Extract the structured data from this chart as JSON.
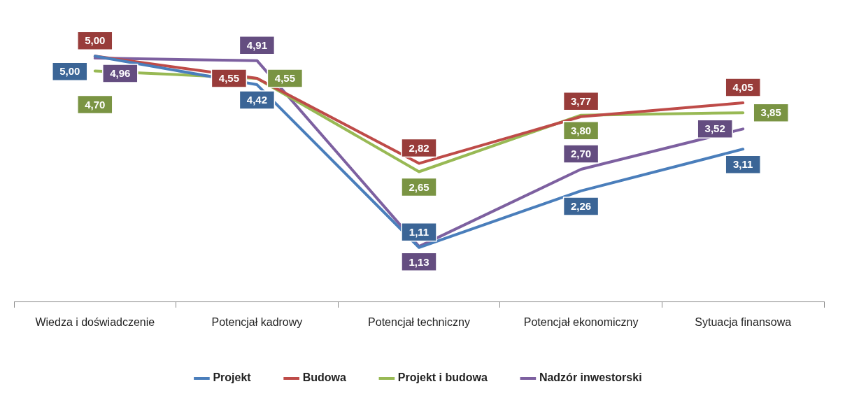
{
  "chart_data": {
    "type": "line",
    "categories": [
      "Wiedza i doświadczenie",
      "Potencjał kadrowy",
      "Potencjał techniczny",
      "Potencjał ekonomiczny",
      "Sytuacja finansowa"
    ],
    "series": [
      {
        "name": "Projekt",
        "color": "#4a7ebb",
        "values": [
          5.0,
          4.42,
          1.11,
          2.26,
          3.11
        ],
        "value_labels": [
          "5,00",
          "4,42",
          "1,11",
          "2,26",
          "3,11"
        ]
      },
      {
        "name": "Budowa",
        "color": "#be4b48",
        "values": [
          5.0,
          4.55,
          2.82,
          3.77,
          4.05
        ],
        "value_labels": [
          "5,00",
          "4,55",
          "2,82",
          "3,77",
          "4,05"
        ]
      },
      {
        "name": "Projekt i budowa",
        "color": "#98b954",
        "values": [
          4.7,
          4.55,
          2.65,
          3.8,
          3.85
        ],
        "value_labels": [
          "4,70",
          "4,55",
          "2,65",
          "3,80",
          "3,85"
        ]
      },
      {
        "name": "Nadzór inwestorski",
        "color": "#7d60a0",
        "values": [
          4.96,
          4.91,
          1.13,
          2.7,
          3.52
        ],
        "value_labels": [
          "4,96",
          "4,91",
          "1,13",
          "2,70",
          "3,52"
        ]
      }
    ],
    "tick_labels": "x",
    "legend": "bottom",
    "marker": "none",
    "grid": false
  }
}
